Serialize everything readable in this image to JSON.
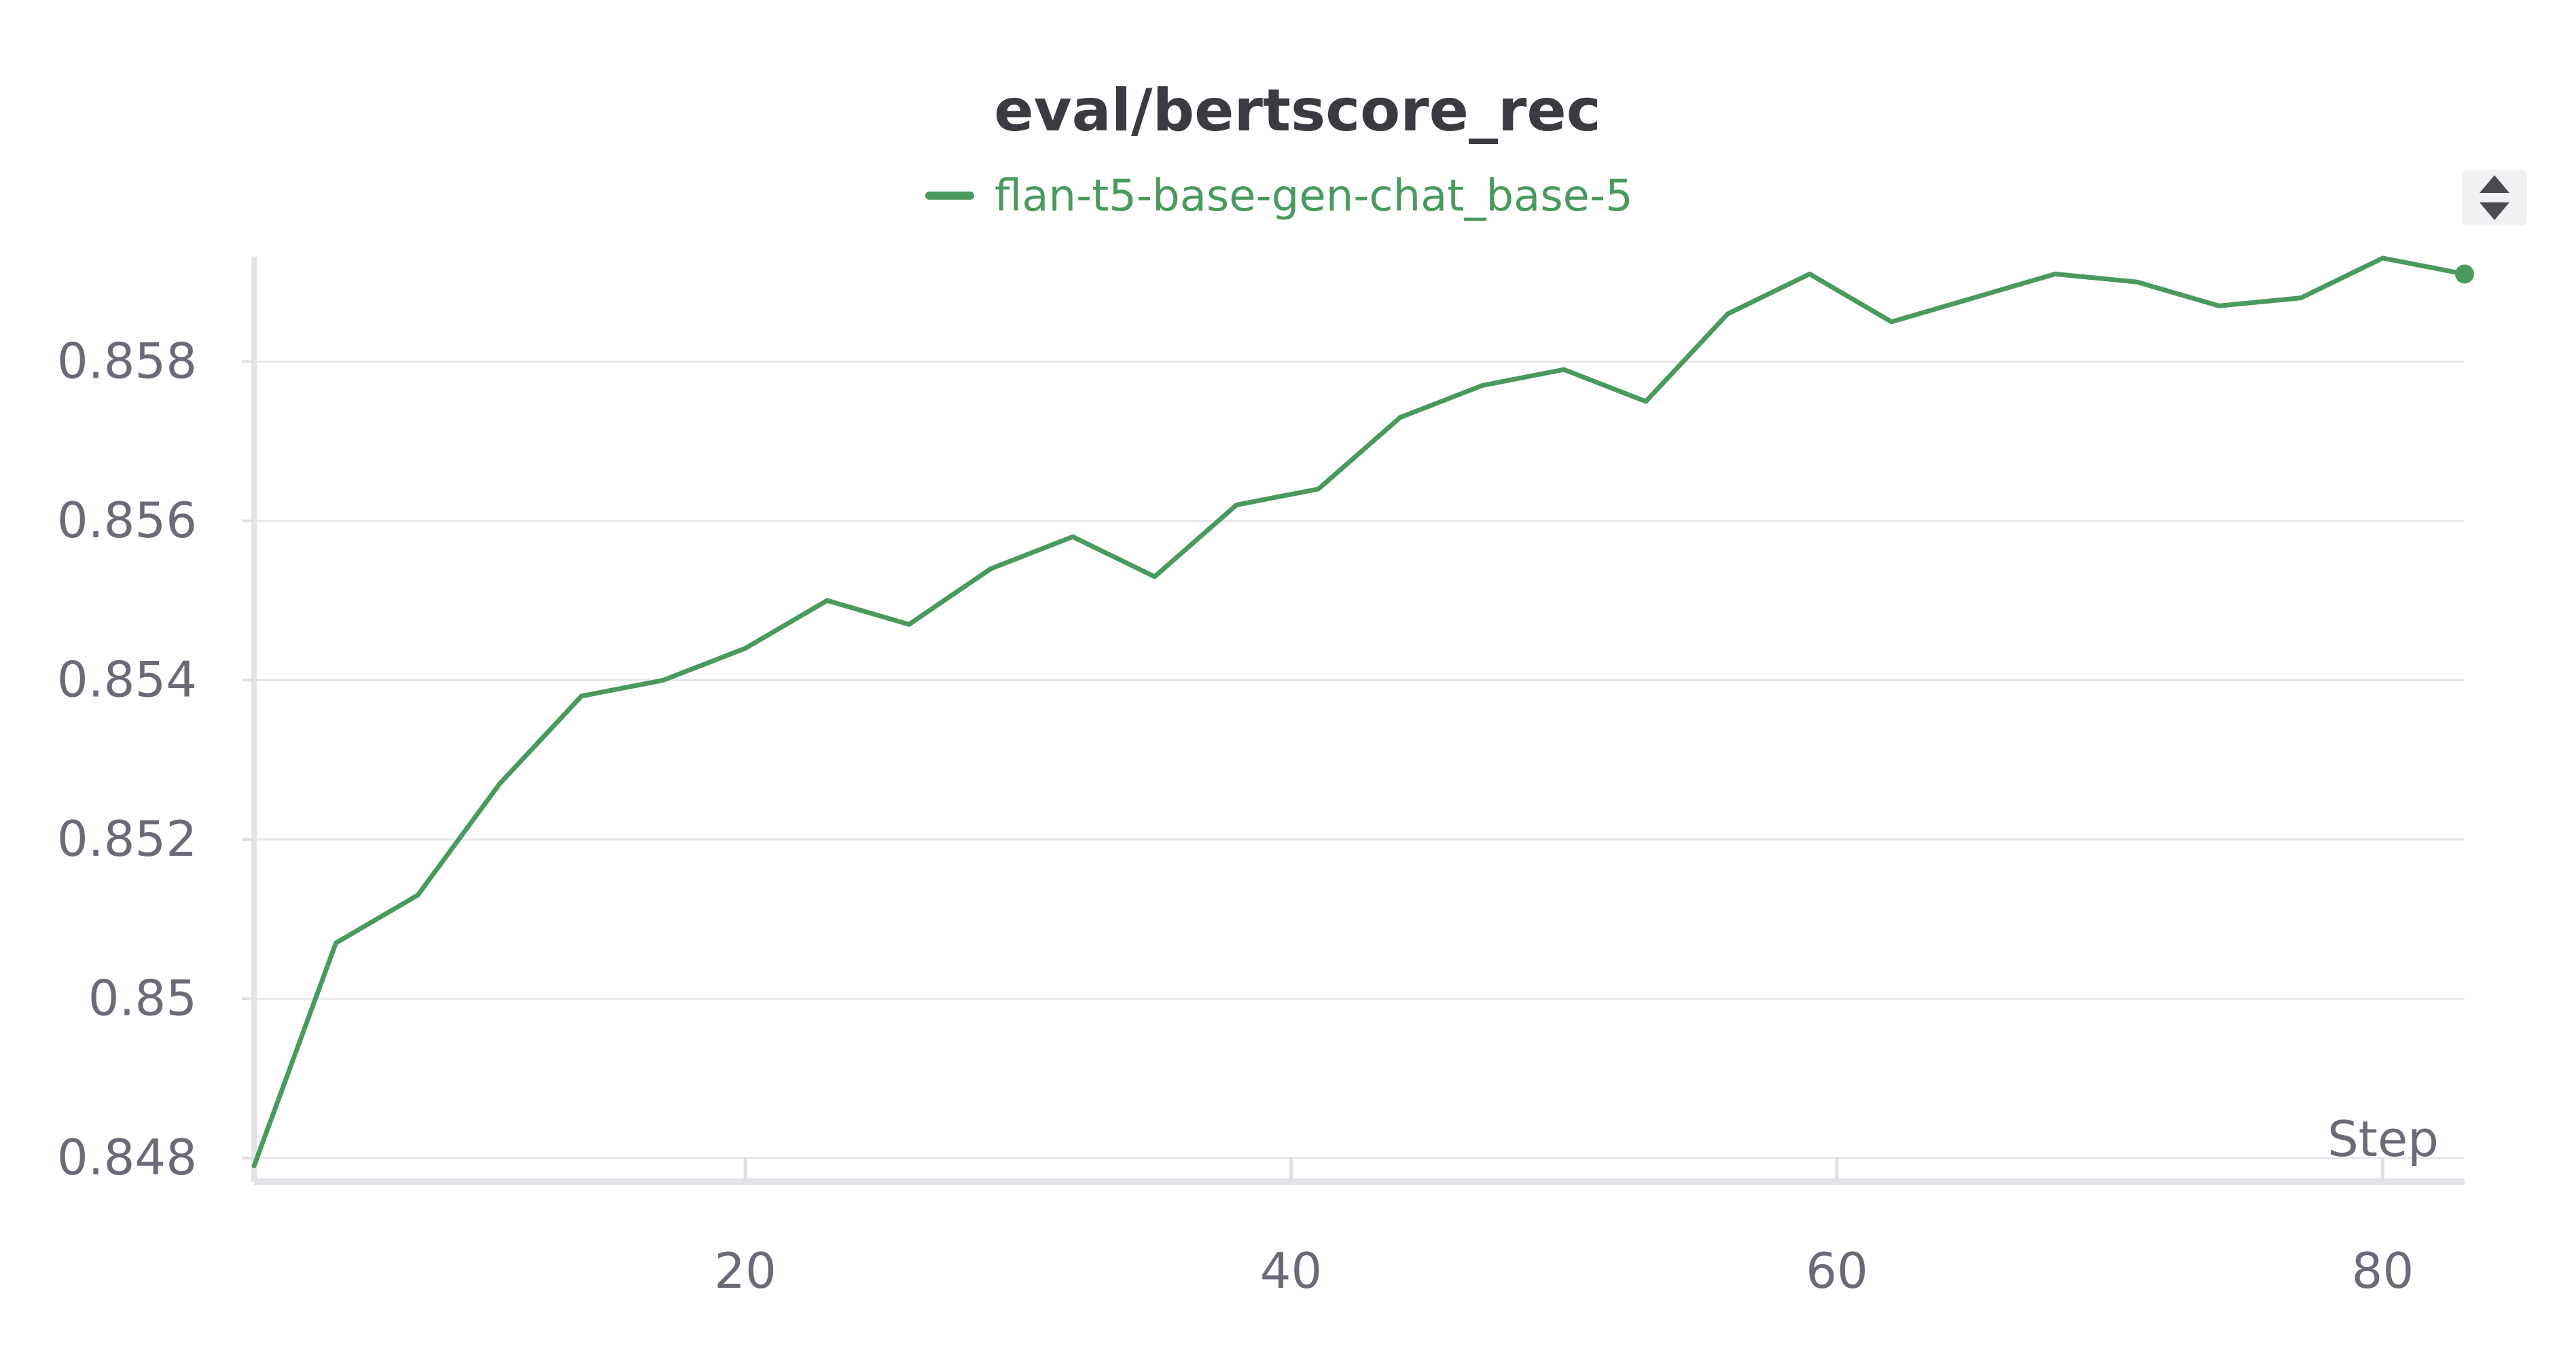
{
  "chart_data": {
    "type": "line",
    "title": "eval/bertscore_rec",
    "xlabel": "Step",
    "ylabel": "",
    "xlim": [
      2,
      83
    ],
    "ylim": [
      0.8477,
      0.8593
    ],
    "x_ticks": [
      20,
      40,
      60,
      80
    ],
    "y_ticks": [
      0.848,
      0.85,
      0.852,
      0.854,
      0.856,
      0.858
    ],
    "y_tick_labels": [
      "0.848",
      "0.85",
      "0.852",
      "0.854",
      "0.856",
      "0.858"
    ],
    "x_tick_labels": [
      "20",
      "40",
      "60",
      "80"
    ],
    "grid": true,
    "legend_position": "top-center",
    "series": [
      {
        "name": "flan-t5-base-gen-chat_base-5",
        "color": "#4a9a5e",
        "x": [
          2,
          5,
          8,
          11,
          14,
          17,
          20,
          23,
          26,
          29,
          32,
          35,
          38,
          41,
          44,
          47,
          50,
          53,
          56,
          59,
          62,
          65,
          68,
          71,
          74,
          77,
          80,
          83
        ],
        "y": [
          0.8479,
          0.8507,
          0.8513,
          0.8527,
          0.8538,
          0.854,
          0.8544,
          0.855,
          0.8547,
          0.8554,
          0.8558,
          0.8553,
          0.8562,
          0.8564,
          0.8573,
          0.8577,
          0.8579,
          0.8575,
          0.8586,
          0.8591,
          0.8585,
          0.8588,
          0.8591,
          0.859,
          0.8587,
          0.8588,
          0.8593,
          0.8591
        ]
      }
    ]
  },
  "ui": {
    "sort_icon": "sort-up-down-icon",
    "accent": "#4a9a5e"
  }
}
